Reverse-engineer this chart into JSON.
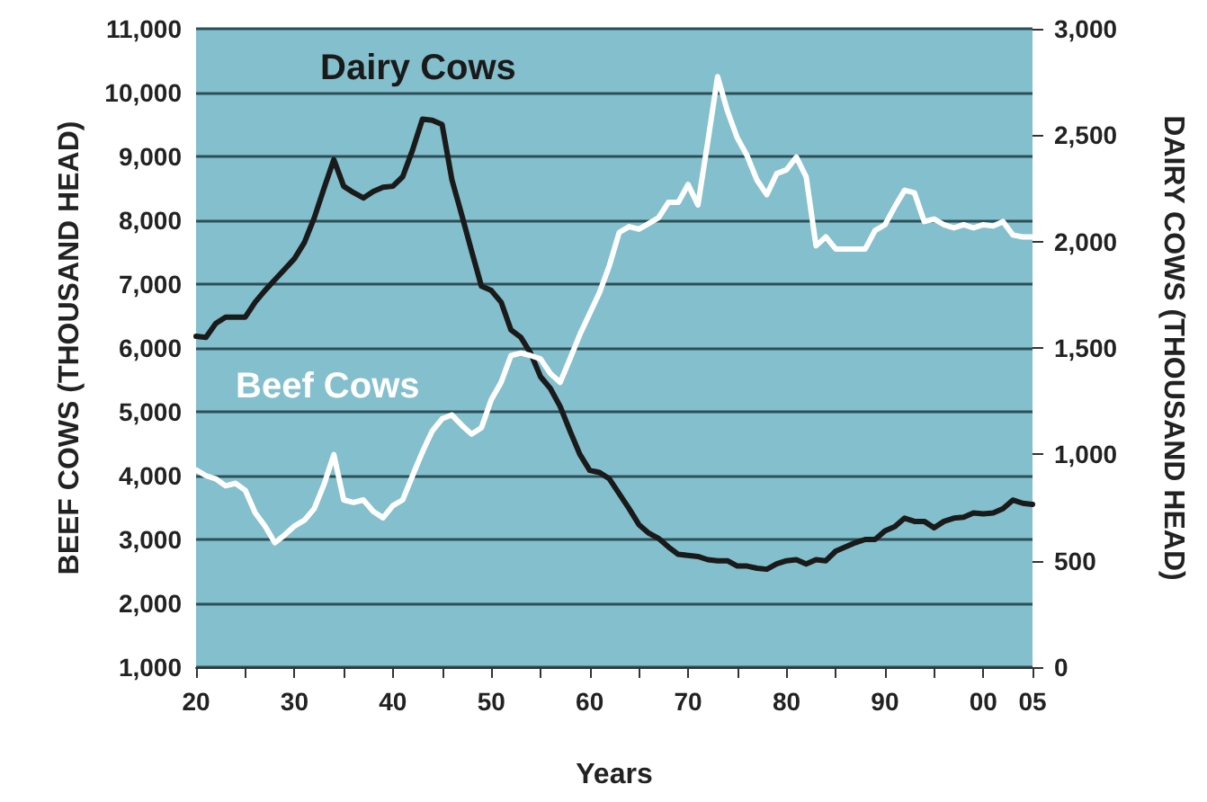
{
  "chart_data": {
    "type": "line",
    "xlabel": "Years",
    "ylabel": "BEEF COWS (THOUSAND HEAD)",
    "y2label": "DAIRY COWS (THOUSAND HEAD)",
    "x": [
      1920,
      1921,
      1922,
      1923,
      1924,
      1925,
      1926,
      1927,
      1928,
      1929,
      1930,
      1931,
      1932,
      1933,
      1934,
      1935,
      1936,
      1937,
      1938,
      1939,
      1940,
      1941,
      1942,
      1943,
      1944,
      1945,
      1946,
      1947,
      1948,
      1949,
      1950,
      1951,
      1952,
      1953,
      1954,
      1955,
      1956,
      1957,
      1958,
      1959,
      1960,
      1961,
      1962,
      1963,
      1964,
      1965,
      1966,
      1967,
      1968,
      1969,
      1970,
      1971,
      1972,
      1973,
      1974,
      1975,
      1976,
      1977,
      1978,
      1979,
      1980,
      1981,
      1982,
      1983,
      1984,
      1985,
      1986,
      1987,
      1988,
      1989,
      1990,
      1991,
      1992,
      1993,
      1994,
      1995,
      1996,
      1997,
      1998,
      1999,
      2000,
      2001,
      2002,
      2003,
      2004,
      2005
    ],
    "series": [
      {
        "name": "Dairy Cows",
        "color": "#1a1a1a",
        "axis": "y2",
        "values": [
          1555,
          1550,
          1615,
          1645,
          1645,
          1645,
          1715,
          1770,
          1820,
          1870,
          1920,
          1995,
          2110,
          2250,
          2385,
          2260,
          2230,
          2205,
          2235,
          2255,
          2260,
          2305,
          2430,
          2575,
          2570,
          2550,
          2290,
          2125,
          1955,
          1790,
          1770,
          1715,
          1585,
          1550,
          1475,
          1365,
          1310,
          1225,
          1110,
          1000,
          925,
          915,
          885,
          815,
          745,
          670,
          630,
          605,
          565,
          530,
          525,
          520,
          505,
          500,
          500,
          475,
          475,
          465,
          460,
          485,
          500,
          505,
          485,
          505,
          500,
          545,
          565,
          585,
          600,
          600,
          640,
          660,
          700,
          685,
          685,
          655,
          685,
          700,
          705,
          725,
          720,
          725,
          745,
          785,
          770,
          765
        ]
      },
      {
        "name": "Beef Cows",
        "color": "#ffffff",
        "values": [
          4090,
          4000,
          3950,
          3840,
          3880,
          3770,
          3420,
          3210,
          2950,
          3070,
          3210,
          3300,
          3480,
          3860,
          4330,
          3620,
          3580,
          3620,
          3440,
          3340,
          3530,
          3620,
          4000,
          4370,
          4700,
          4890,
          4950,
          4790,
          4650,
          4750,
          5190,
          5460,
          5880,
          5920,
          5880,
          5830,
          5600,
          5460,
          5830,
          6210,
          6540,
          6870,
          7290,
          7810,
          7900,
          7860,
          7950,
          8040,
          8280,
          8280,
          8560,
          8240,
          9230,
          10250,
          9710,
          9290,
          9010,
          8630,
          8400,
          8730,
          8790,
          8990,
          8680,
          7600,
          7740,
          7550,
          7550,
          7550,
          7550,
          7840,
          7930,
          8210,
          8470,
          8430,
          7980,
          8020,
          7930,
          7880,
          7930,
          7880,
          7930,
          7910,
          7980,
          7770,
          7740,
          7740
        ]
      }
    ],
    "xlim": [
      1920,
      2005
    ],
    "xticks": [
      {
        "value": 1920,
        "label": "20"
      },
      {
        "value": 1925,
        "label": null
      },
      {
        "value": 1930,
        "label": "30"
      },
      {
        "value": 1935,
        "label": null
      },
      {
        "value": 1940,
        "label": "40"
      },
      {
        "value": 1945,
        "label": null
      },
      {
        "value": 1950,
        "label": "50"
      },
      {
        "value": 1955,
        "label": null
      },
      {
        "value": 1960,
        "label": "60"
      },
      {
        "value": 1965,
        "label": null
      },
      {
        "value": 1970,
        "label": "70"
      },
      {
        "value": 1975,
        "label": null
      },
      {
        "value": 1980,
        "label": "80"
      },
      {
        "value": 1985,
        "label": null
      },
      {
        "value": 1990,
        "label": "90"
      },
      {
        "value": 1995,
        "label": null
      },
      {
        "value": 2000,
        "label": "00"
      },
      {
        "value": 2005,
        "label": "05"
      }
    ],
    "ylim": [
      1000,
      11000
    ],
    "yticks": [
      {
        "value": 1000,
        "label": "1,000"
      },
      {
        "value": 2000,
        "label": "2,000"
      },
      {
        "value": 3000,
        "label": "3,000"
      },
      {
        "value": 4000,
        "label": "4,000"
      },
      {
        "value": 5000,
        "label": "5,000"
      },
      {
        "value": 6000,
        "label": "6,000"
      },
      {
        "value": 7000,
        "label": "7,000"
      },
      {
        "value": 8000,
        "label": "8,000"
      },
      {
        "value": 9000,
        "label": "9,000"
      },
      {
        "value": 10000,
        "label": "10,000"
      },
      {
        "value": 11000,
        "label": "11,000"
      }
    ],
    "y2lim": [
      0,
      3000
    ],
    "y2ticks": [
      0,
      500,
      {
        "value": 1000,
        "label": "1,000"
      },
      {
        "value": 1500,
        "label": "1,500"
      },
      {
        "value": 2000,
        "label": "2,000"
      },
      {
        "value": 2500,
        "label": "2,500"
      },
      {
        "value": 3000,
        "label": "3,000"
      }
    ],
    "grid": "y",
    "marker": "none",
    "line_style": "solid"
  }
}
